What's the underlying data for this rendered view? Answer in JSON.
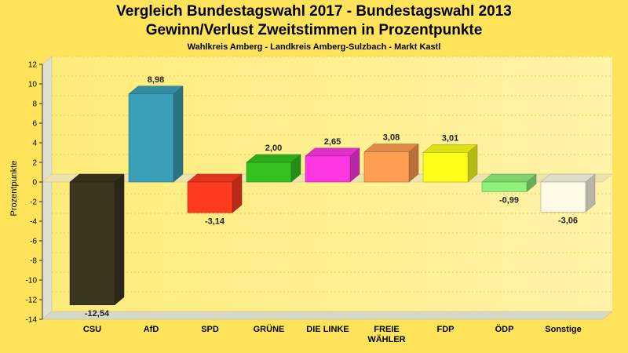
{
  "header": {
    "title_line1": "Vergleich Bundestagswahl 2017 - Bundestagswahl 2013",
    "title_line2": "Gewinn/Verlust Zweitstimmen in Prozentpunkte",
    "subtitle": "Wahlkreis Amberg - Landkreis Amberg-Sulzbach - Markt Kastl"
  },
  "chart_data": {
    "type": "bar",
    "title": "Vergleich Bundestagswahl 2017 - Bundestagswahl 2013",
    "subtitle": "Gewinn/Verlust Zweitstimmen in Prozentpunkte",
    "ylabel": "Prozentpunkte",
    "xlabel": "",
    "ylim": [
      -14,
      12
    ],
    "yticks": [
      "12",
      "10",
      "8",
      "6",
      "4",
      "2",
      "0",
      "-2",
      "-4",
      "-6",
      "-8",
      "-10",
      "-12",
      "-14"
    ],
    "grid": true,
    "categories": [
      {
        "lines": [
          "CSU"
        ]
      },
      {
        "lines": [
          "AfD"
        ]
      },
      {
        "lines": [
          "SPD"
        ]
      },
      {
        "lines": [
          "GRÜNE"
        ]
      },
      {
        "lines": [
          "DIE LINKE"
        ]
      },
      {
        "lines": [
          "FREIE",
          "WÄHLER"
        ]
      },
      {
        "lines": [
          "FDP"
        ]
      },
      {
        "lines": [
          "ÖDP"
        ]
      },
      {
        "lines": [
          "Sonstige"
        ]
      }
    ],
    "values": [
      -12.54,
      8.98,
      -3.14,
      2.0,
      2.65,
      3.08,
      3.01,
      -0.99,
      -3.06
    ],
    "value_labels": [
      "-12,54",
      "8,98",
      "-3,14",
      "2,00",
      "2,65",
      "3,08",
      "3,01",
      "-0,99",
      "-3,06"
    ],
    "colors": [
      "#3c3520",
      "#3aa0b8",
      "#ff3a20",
      "#33c21f",
      "#ff37e3",
      "#ff9d52",
      "#ffff1a",
      "#90f07a",
      "#fffbe6"
    ]
  }
}
